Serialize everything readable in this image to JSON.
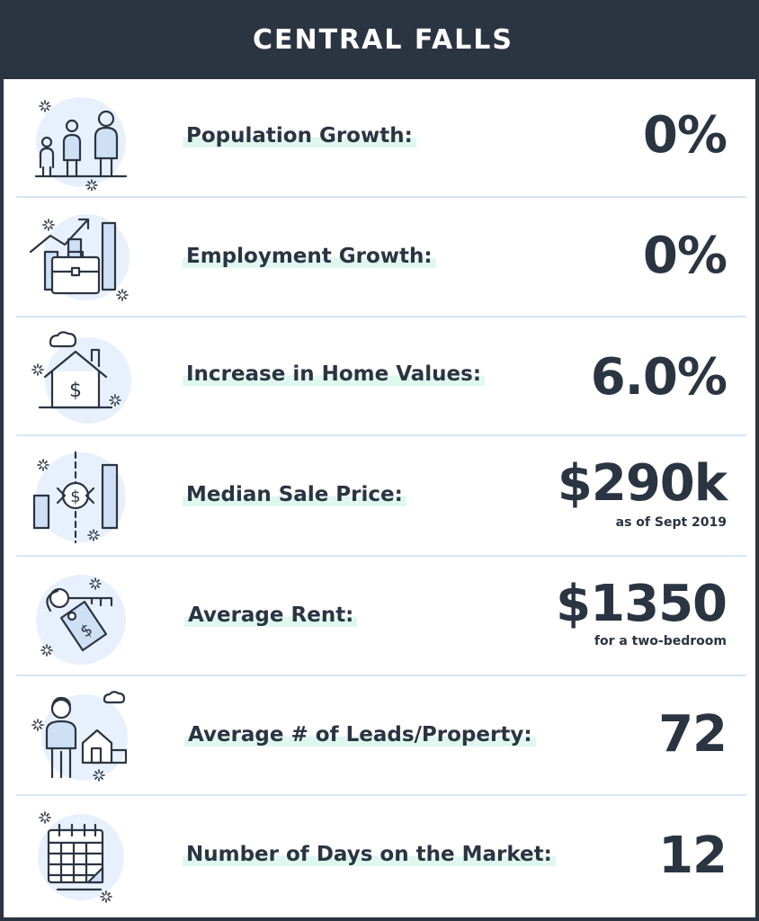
{
  "header": {
    "title": "CENTRAL FALLS"
  },
  "colors": {
    "header_bg": "#2b3441",
    "text": "#2b3441",
    "divider": "#d6e6f4",
    "highlight": "#e0f7f0",
    "icon_fill": "#cfe0f5"
  },
  "metrics": [
    {
      "label": "Population Growth:",
      "value": "0%",
      "note": "",
      "icon": "people-icon"
    },
    {
      "label": "Employment Growth:",
      "value": "0%",
      "note": "",
      "icon": "briefcase-chart-icon"
    },
    {
      "label": "Increase in Home Values:",
      "value": "6.0%",
      "note": "",
      "icon": "house-dollar-icon"
    },
    {
      "label": "Median Sale Price:",
      "value": "$290k",
      "note": "as  of Sept 2019",
      "icon": "dollar-exchange-icon"
    },
    {
      "label": "Average Rent:",
      "value": "$1350",
      "note": "for a two-bedroom",
      "icon": "key-tag-icon"
    },
    {
      "label": "Average # of Leads/Property:",
      "value": "72",
      "note": "",
      "icon": "person-house-icon"
    },
    {
      "label": "Number of Days on the Market:",
      "value": "12",
      "note": "",
      "icon": "calendar-icon"
    }
  ]
}
